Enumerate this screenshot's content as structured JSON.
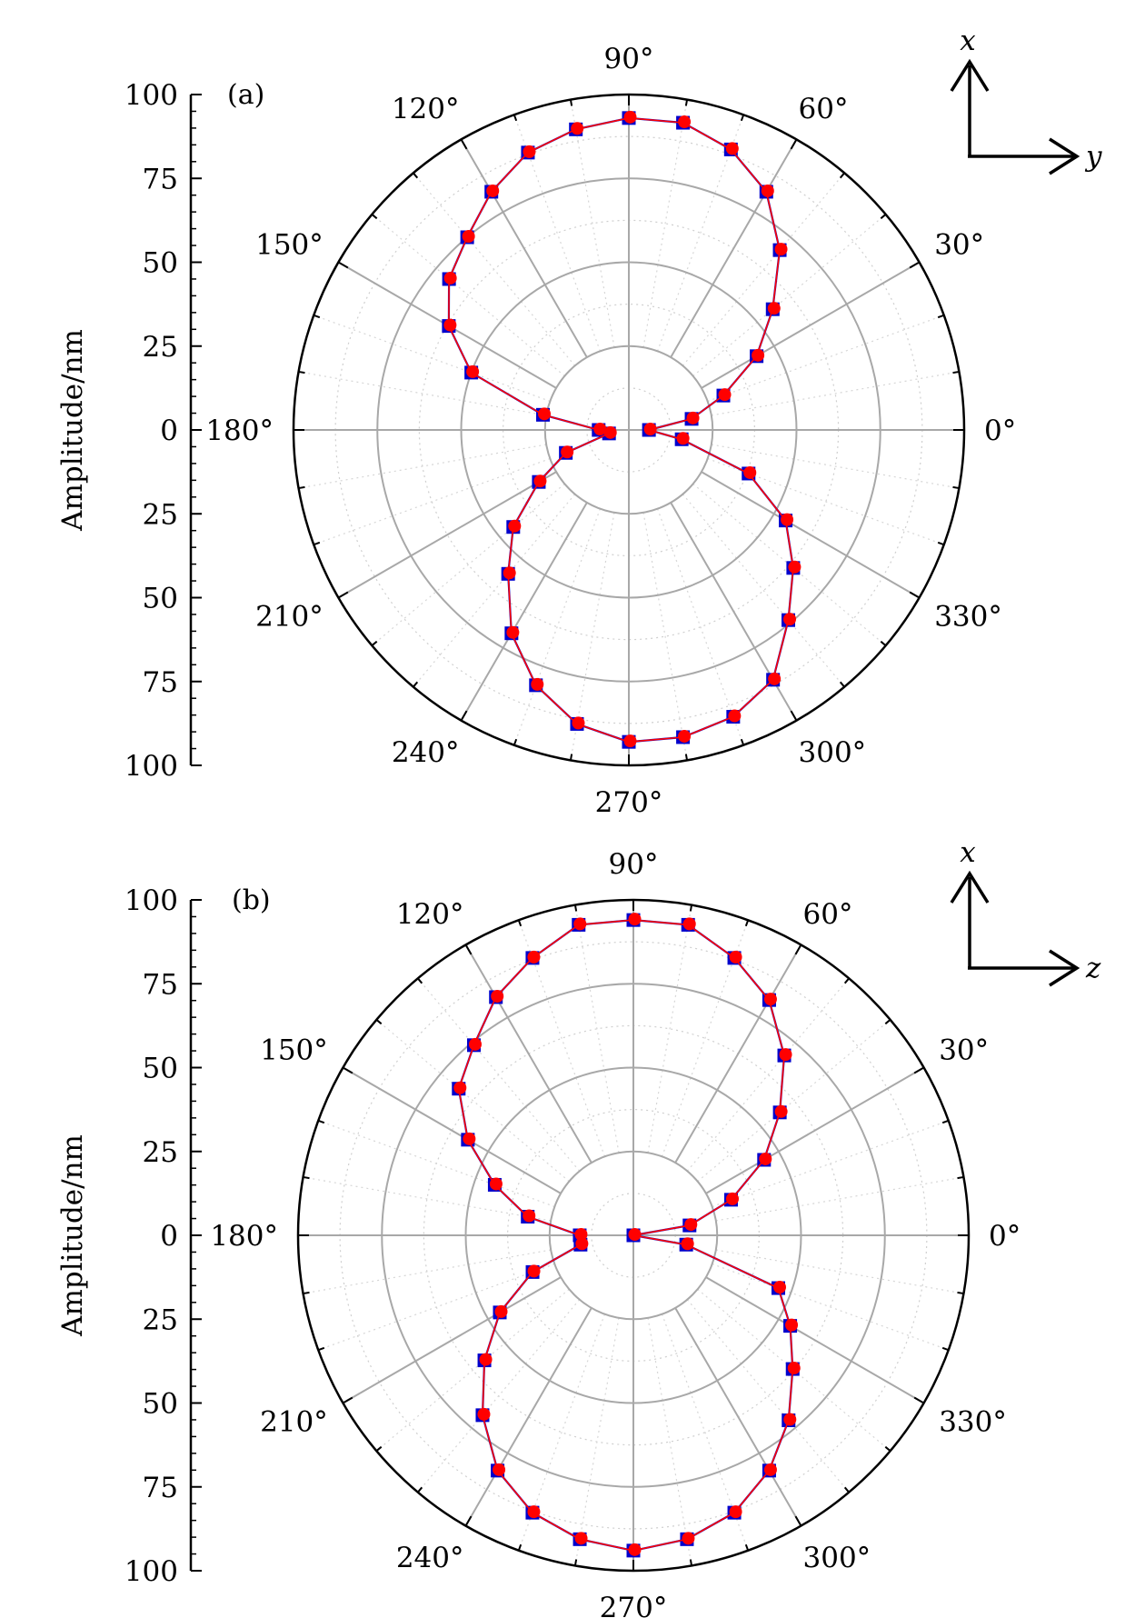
{
  "chart_data": [
    {
      "type": "polar-scatter",
      "panel_label": "(a)",
      "ylabel": "Amplitude/nm",
      "rlim": [
        0,
        100
      ],
      "r_ticks": [
        100,
        75,
        50,
        25,
        0,
        25,
        50,
        75,
        100
      ],
      "theta_ticks": [
        "0°",
        "30°",
        "60°",
        "90°",
        "120°",
        "150°",
        "180°",
        "210°",
        "240°",
        "270°",
        "300°",
        "330°"
      ],
      "grid": true,
      "coord_axes": {
        "up": "x",
        "right": "y"
      },
      "series": [
        {
          "color": "#0000cc",
          "marker": "square",
          "theta": [
            0,
            10,
            20,
            30,
            40,
            50,
            60,
            70,
            80,
            90,
            100,
            110,
            120,
            130,
            140,
            150,
            160,
            170,
            180,
            190,
            200,
            210,
            220,
            230,
            240,
            250,
            260,
            270,
            280,
            290,
            300,
            310,
            320,
            330,
            340,
            350
          ],
          "r": [
            6,
            19,
            30,
            44,
            56,
            70,
            82,
            89,
            93,
            93,
            91,
            88,
            82,
            75,
            70,
            62,
            50,
            26,
            9,
            6,
            20,
            31,
            45,
            56,
            70,
            81,
            89,
            93,
            93,
            91,
            86,
            74,
            64,
            54,
            38,
            16
          ]
        },
        {
          "color": "#ff0000",
          "marker": "circle",
          "theta": [
            0,
            10,
            20,
            30,
            40,
            50,
            60,
            70,
            80,
            90,
            100,
            110,
            120,
            130,
            140,
            150,
            160,
            170,
            180,
            190,
            200,
            210,
            220,
            230,
            240,
            250,
            260,
            270,
            280,
            290,
            300,
            310,
            320,
            330,
            340,
            350
          ],
          "r": [
            6,
            19,
            30,
            44,
            56,
            70,
            82,
            89,
            93,
            93,
            91,
            88,
            82,
            75,
            70,
            62,
            50,
            26,
            9,
            6,
            20,
            31,
            45,
            56,
            70,
            81,
            89,
            93,
            93,
            91,
            86,
            74,
            64,
            54,
            38,
            16
          ]
        }
      ]
    },
    {
      "type": "polar-scatter",
      "panel_label": "(b)",
      "ylabel": "Amplitude/nm",
      "rlim": [
        0,
        100
      ],
      "r_ticks": [
        100,
        75,
        50,
        25,
        0,
        25,
        50,
        75,
        100
      ],
      "theta_ticks": [
        "0°",
        "30°",
        "60°",
        "90°",
        "120°",
        "150°",
        "180°",
        "210°",
        "240°",
        "270°",
        "300°",
        "330°"
      ],
      "grid": true,
      "coord_axes": {
        "up": "x",
        "right": "z"
      },
      "series": [
        {
          "color": "#0000cc",
          "marker": "square",
          "theta": [
            0,
            10,
            20,
            30,
            40,
            50,
            60,
            70,
            80,
            90,
            100,
            110,
            120,
            130,
            140,
            150,
            160,
            170,
            180,
            190,
            200,
            210,
            220,
            230,
            240,
            250,
            260,
            270,
            280,
            290,
            300,
            310,
            320,
            330,
            340,
            350
          ],
          "r": [
            0,
            17,
            31,
            45,
            57,
            70,
            81,
            88,
            94,
            94,
            94,
            88,
            82,
            74,
            68,
            57,
            44,
            32,
            16,
            16,
            32,
            46,
            58,
            70,
            81,
            88,
            92,
            94,
            92,
            88,
            81,
            72,
            62,
            54,
            46,
            16
          ]
        },
        {
          "color": "#ff0000",
          "marker": "circle",
          "theta": [
            0,
            10,
            20,
            30,
            40,
            50,
            60,
            70,
            80,
            90,
            100,
            110,
            120,
            130,
            140,
            150,
            160,
            170,
            180,
            190,
            200,
            210,
            220,
            230,
            240,
            250,
            260,
            270,
            280,
            290,
            300,
            310,
            320,
            330,
            340,
            350
          ],
          "r": [
            0,
            17,
            31,
            45,
            57,
            70,
            81,
            88,
            94,
            94,
            94,
            88,
            82,
            74,
            68,
            57,
            44,
            32,
            16,
            16,
            32,
            46,
            58,
            70,
            81,
            88,
            92,
            94,
            92,
            88,
            81,
            72,
            62,
            54,
            46,
            16
          ]
        }
      ]
    }
  ]
}
